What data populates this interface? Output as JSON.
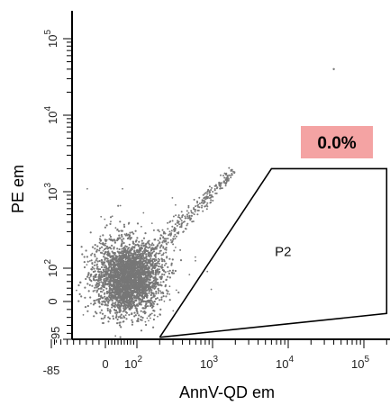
{
  "chart_data": {
    "type": "scatter",
    "xlabel": "AnnV-QD em",
    "ylabel": "PE em",
    "x_ticks": [
      {
        "base": "-85",
        "exp": ""
      },
      {
        "base": "0",
        "exp": ""
      },
      {
        "base": "10",
        "exp": "2"
      },
      {
        "base": "10",
        "exp": "3"
      },
      {
        "base": "10",
        "exp": "4"
      },
      {
        "base": "10",
        "exp": "5"
      }
    ],
    "y_ticks": [
      {
        "base": "-95",
        "exp": ""
      },
      {
        "base": "0",
        "exp": ""
      },
      {
        "base": "10",
        "exp": "2"
      },
      {
        "base": "10",
        "exp": "3"
      },
      {
        "base": "10",
        "exp": "4"
      },
      {
        "base": "10",
        "exp": "5"
      }
    ],
    "x_tick_values": [
      -85,
      0,
      100,
      1000,
      10000,
      100000
    ],
    "y_tick_values": [
      -95,
      0,
      100,
      1000,
      10000,
      100000
    ],
    "scale": "biexponential",
    "gate": {
      "name": "P2",
      "percentage": "0.0%",
      "vertices": [
        [
          200,
          -90
        ],
        [
          6000,
          2000
        ],
        [
          200000,
          2000
        ],
        [
          200000,
          -30
        ]
      ]
    },
    "population": {
      "center": [
        70,
        70
      ],
      "tail_to": [
        2000,
        2000
      ],
      "outlier": [
        40000,
        40000
      ],
      "color": "#777777"
    },
    "colors": {
      "pct_box": "#f4a3a3",
      "points": "#777777"
    }
  }
}
